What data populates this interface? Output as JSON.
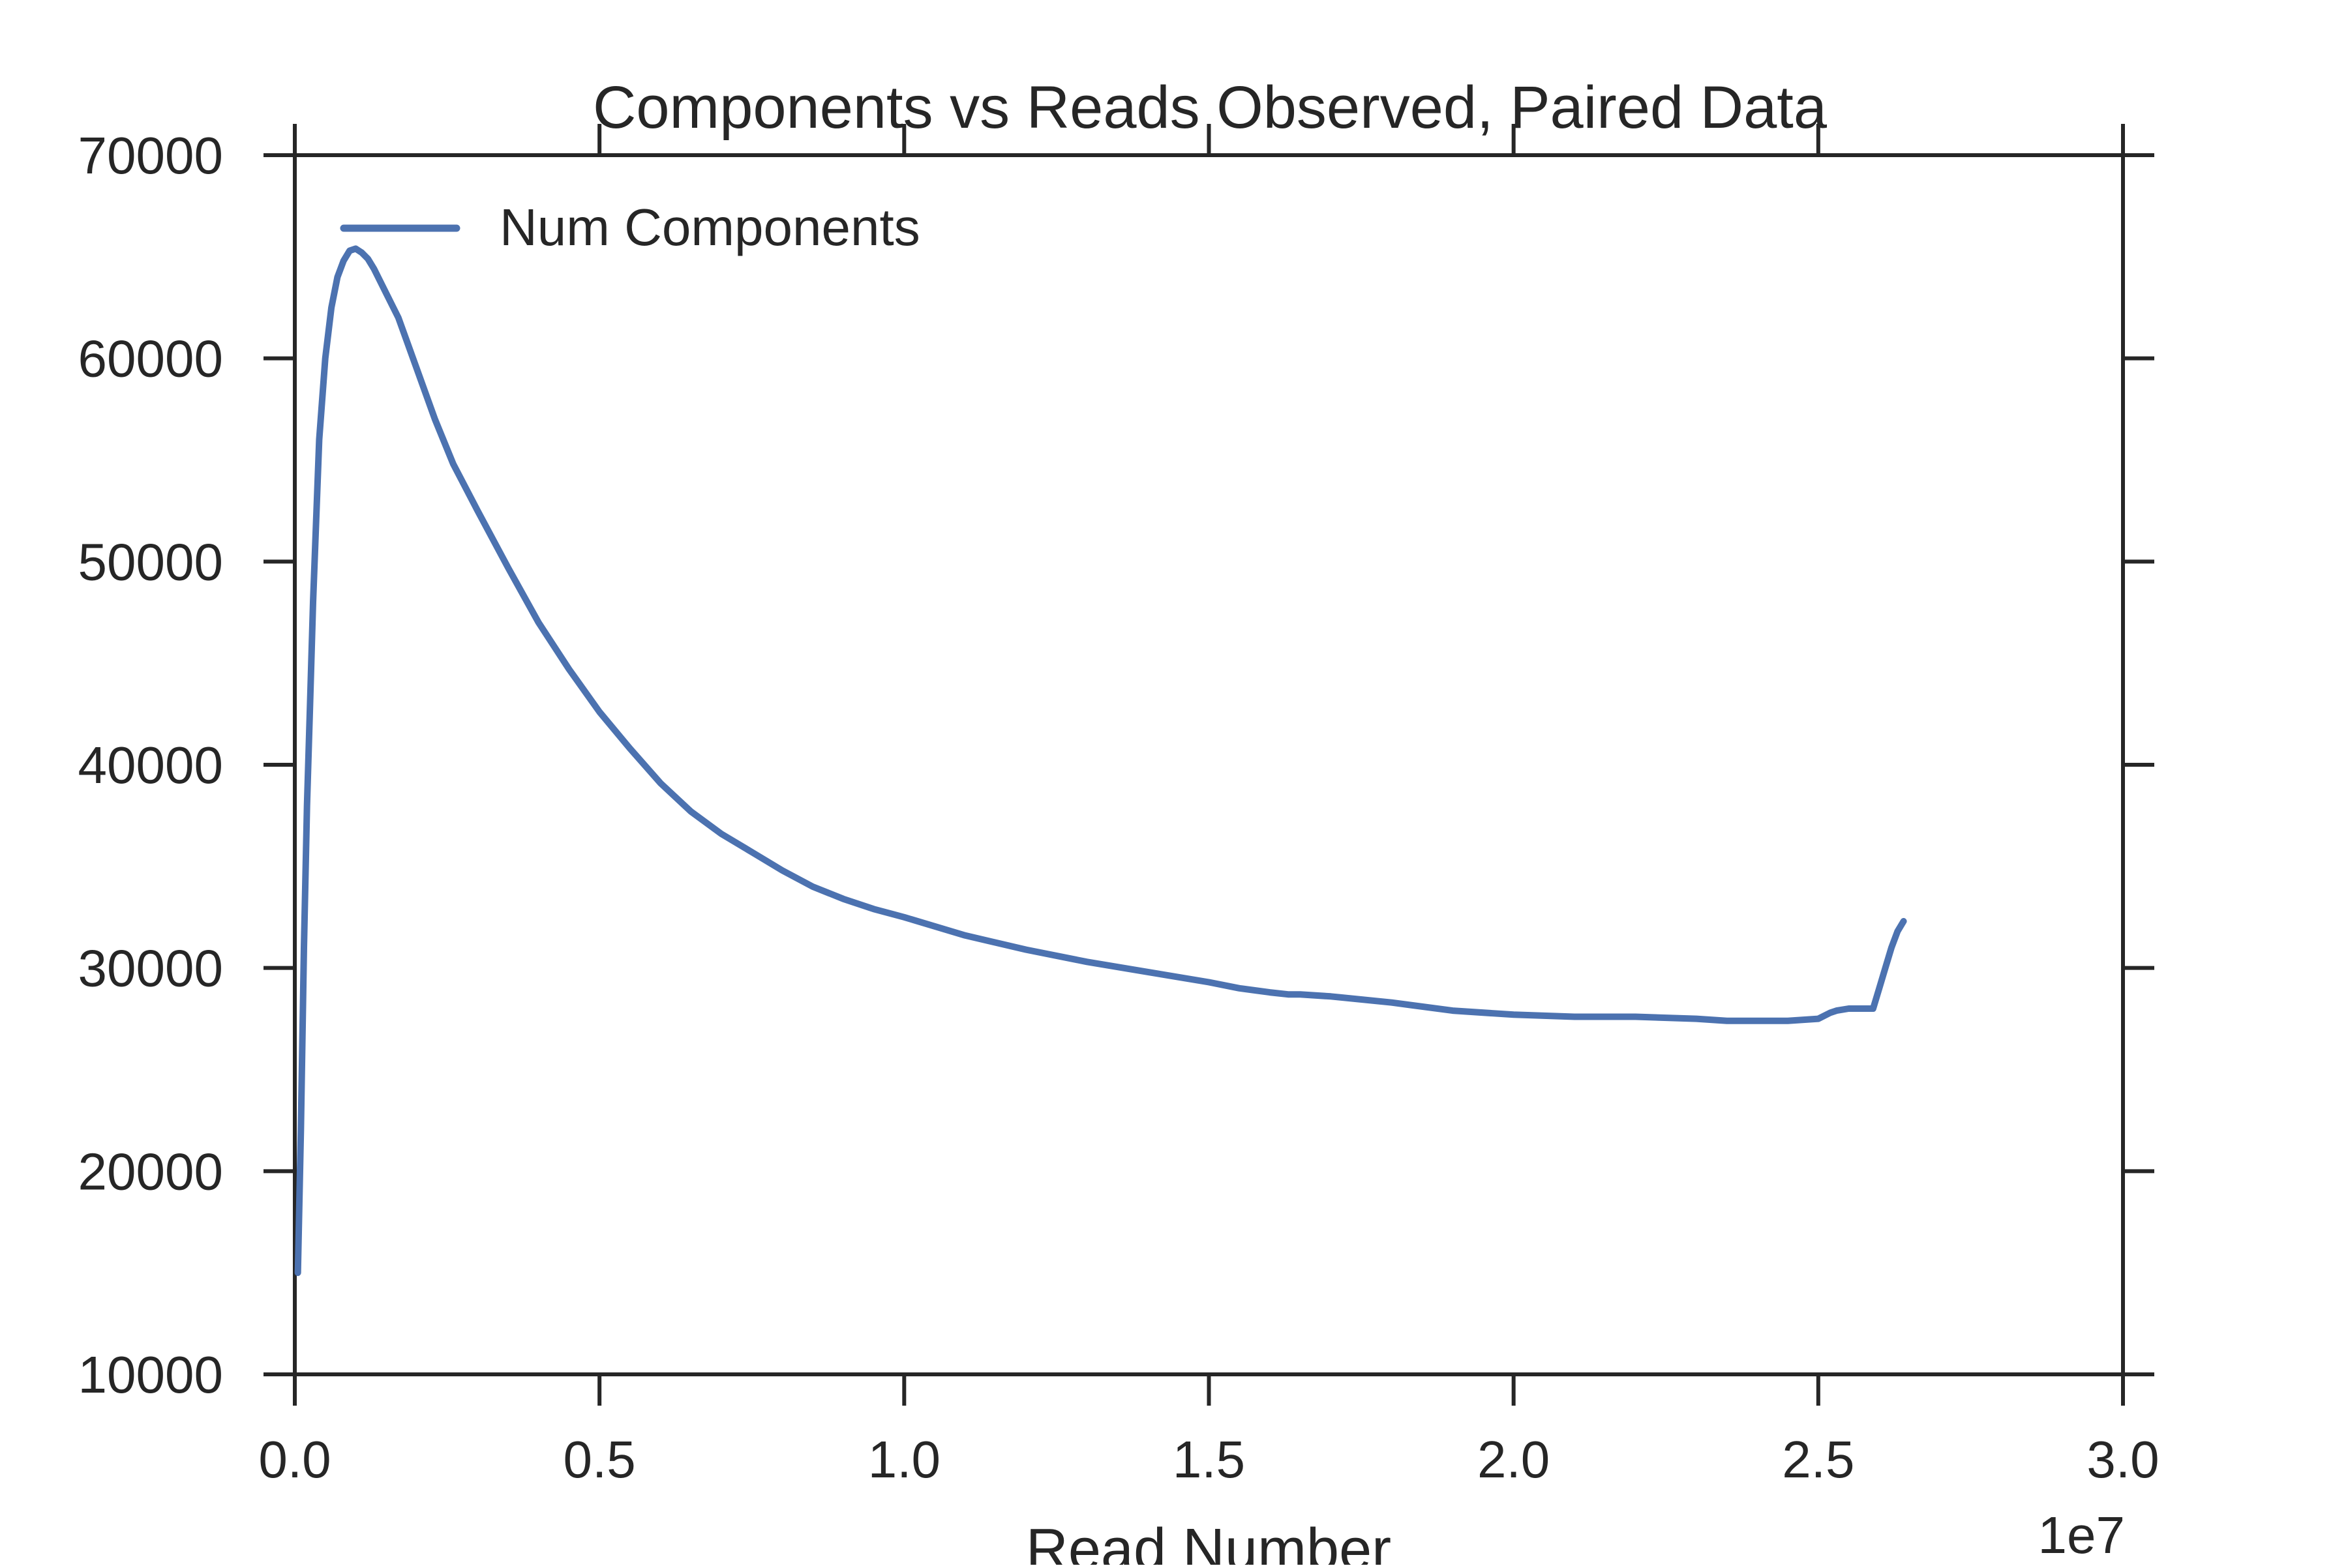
{
  "chart_data": {
    "type": "line",
    "title": "Components vs Reads Observed, Paired Data",
    "xlabel": "Read Number",
    "ylabel": "",
    "x_exponent_label": "1e7",
    "xlim": [
      0,
      30000000
    ],
    "ylim": [
      10000,
      70000
    ],
    "x_ticks": [
      0,
      5000000,
      10000000,
      15000000,
      20000000,
      25000000,
      30000000
    ],
    "x_tick_labels": [
      "0.0",
      "0.5",
      "1.0",
      "1.5",
      "2.0",
      "2.5",
      "3.0"
    ],
    "y_ticks": [
      10000,
      20000,
      30000,
      40000,
      50000,
      60000,
      70000
    ],
    "y_tick_labels": [
      "10000",
      "20000",
      "30000",
      "40000",
      "50000",
      "60000",
      "70000"
    ],
    "grid": false,
    "legend_position": "top-left",
    "series": [
      {
        "name": "Num Components",
        "color": "#4c72b0",
        "x": [
          50000,
          100000,
          150000,
          200000,
          250000,
          300000,
          350000,
          400000,
          500000,
          600000,
          700000,
          800000,
          900000,
          1000000,
          1100000,
          1200000,
          1300000,
          1500000,
          1700000,
          2000000,
          2300000,
          2600000,
          3000000,
          3500000,
          4000000,
          4500000,
          5000000,
          5500000,
          6000000,
          6500000,
          7000000,
          7500000,
          8000000,
          8500000,
          9000000,
          9500000,
          10000000,
          11000000,
          12000000,
          13000000,
          14000000,
          15000000,
          15500000,
          16000000,
          16300000,
          16500000,
          17000000,
          18000000,
          19000000,
          20000000,
          21000000,
          22000000,
          23000000,
          23500000,
          24000000,
          24500000,
          25000000,
          25200000,
          25300000,
          25500000,
          25700000,
          25900000,
          26000000,
          26100000,
          26200000,
          26300000,
          26400000
        ],
        "values": [
          15000,
          22000,
          31000,
          38000,
          43000,
          48000,
          52000,
          56000,
          60000,
          62500,
          64000,
          64800,
          65300,
          65400,
          65200,
          64900,
          64400,
          63200,
          62000,
          59500,
          57000,
          54800,
          52500,
          49700,
          47000,
          44700,
          42600,
          40800,
          39100,
          37700,
          36600,
          35700,
          34800,
          34000,
          33400,
          32900,
          32500,
          31600,
          30900,
          30300,
          29800,
          29300,
          29000,
          28800,
          28700,
          28700,
          28600,
          28300,
          27900,
          27700,
          27600,
          27600,
          27500,
          27400,
          27400,
          27400,
          27500,
          27800,
          27900,
          28000,
          28000,
          28000,
          29000,
          30000,
          31000,
          31800,
          32300
        ]
      }
    ]
  }
}
